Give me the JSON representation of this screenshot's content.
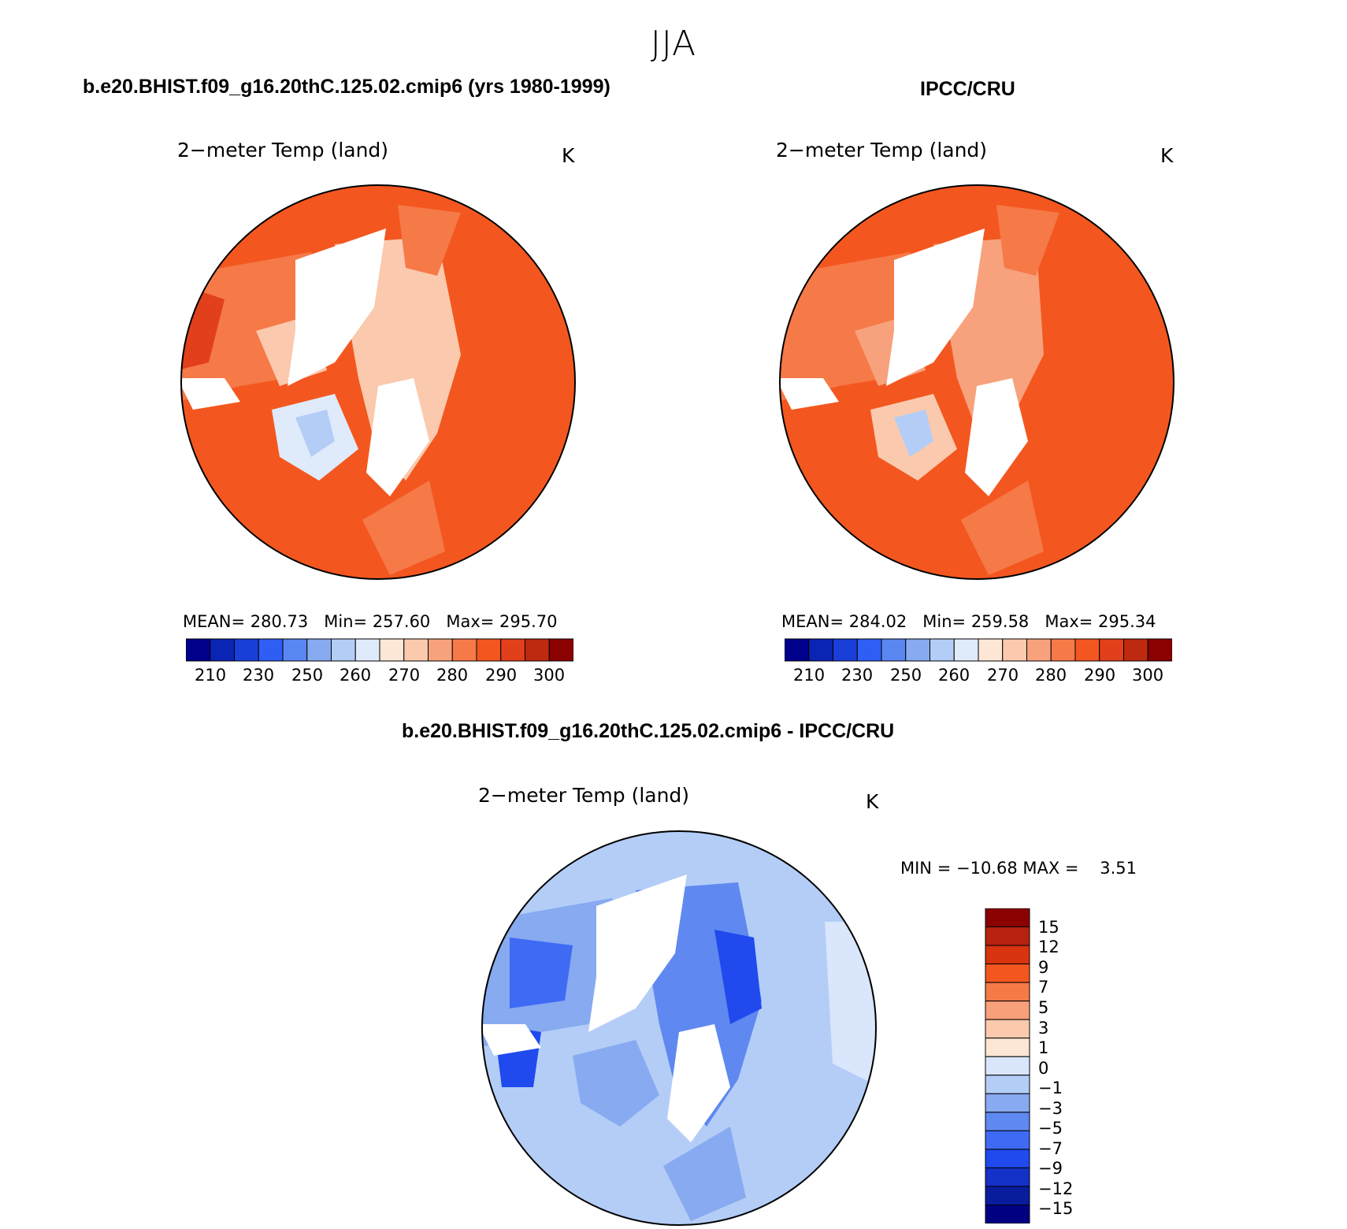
{
  "figure": {
    "season": "JJA",
    "model_case": "b.e20.BHIST.f09_g16.20thC.125.02.cmip6 (yrs 1980-1999)",
    "obs_case": "IPCC/CRU",
    "diff_case": "b.e20.BHIST.f09_g16.20thC.125.02.cmip6 - IPCC/CRU"
  },
  "chart_data": [
    {
      "type": "heatmap",
      "projection": "north polar stereographic",
      "title": "2−meter Temp (land)",
      "units": "K",
      "stats": {
        "mean_label": "MEAN=",
        "mean": "280.73",
        "min_label": "Min=",
        "min": "257.60",
        "max_label": "Max=",
        "max": "295.70"
      },
      "colorbar": {
        "orientation": "horizontal",
        "colors": [
          "#00008b",
          "#0a24b4",
          "#1a3fd9",
          "#2f5ef5",
          "#5a86f2",
          "#87aaf0",
          "#b3cdf7",
          "#dfeafb",
          "#fde7d6",
          "#fbc9ad",
          "#f7a27d",
          "#f67948",
          "#f3571f",
          "#e2401a",
          "#bd2a10",
          "#8b0000"
        ],
        "tick_labels": [
          "210",
          "230",
          "250",
          "260",
          "270",
          "280",
          "290",
          "300"
        ]
      }
    },
    {
      "type": "heatmap",
      "projection": "north polar stereographic",
      "title": "2−meter Temp (land)",
      "units": "K",
      "stats": {
        "mean_label": "MEAN=",
        "mean": "284.02",
        "min_label": "Min=",
        "min": "259.58",
        "max_label": "Max=",
        "max": "295.34"
      },
      "colorbar": {
        "orientation": "horizontal",
        "colors": [
          "#00008b",
          "#0a24b4",
          "#1a3fd9",
          "#2f5ef5",
          "#5a86f2",
          "#87aaf0",
          "#b3cdf7",
          "#dfeafb",
          "#fde7d6",
          "#fbc9ad",
          "#f7a27d",
          "#f67948",
          "#f3571f",
          "#e2401a",
          "#bd2a10",
          "#8b0000"
        ],
        "tick_labels": [
          "210",
          "230",
          "250",
          "260",
          "270",
          "280",
          "290",
          "300"
        ]
      }
    },
    {
      "type": "heatmap",
      "projection": "north polar stereographic",
      "title": "2−meter Temp (land)",
      "units": "K",
      "stats": {
        "min_label": "MIN =",
        "min": "−10.68",
        "max_label": "MAX =",
        "max": "3.51"
      },
      "colorbar": {
        "orientation": "vertical",
        "colors_top_to_bottom": [
          "#8b0000",
          "#b82210",
          "#d9330f",
          "#f3571f",
          "#f67a48",
          "#f8a07a",
          "#fbcaac",
          "#fde6d4",
          "#d9e6fb",
          "#b3cdf7",
          "#87aaf0",
          "#5f88f0",
          "#3f6af4",
          "#2049ee",
          "#1431c8",
          "#0a1c9e",
          "#000080"
        ],
        "tick_labels": [
          "15",
          "12",
          "9",
          "7",
          "5",
          "3",
          "1",
          "0",
          "−1",
          "−3",
          "−5",
          "−7",
          "−9",
          "−12",
          "−15"
        ]
      }
    }
  ]
}
